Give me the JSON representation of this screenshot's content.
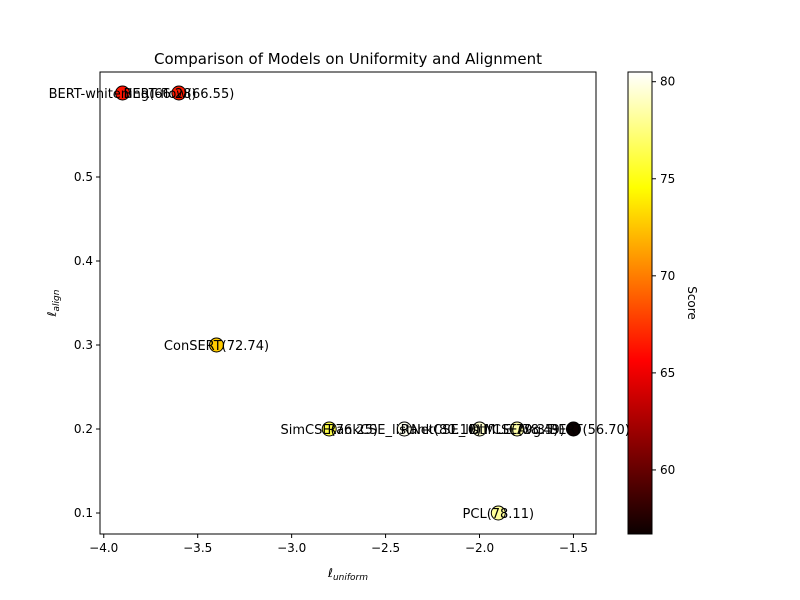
{
  "chart_data": {
    "type": "scatter",
    "title": "Comparison of Models on Uniformity and Alignment",
    "xlabel": "ℓ",
    "xlabel_sub": "uniform",
    "ylabel": "ℓ",
    "ylabel_sub": "align",
    "xlim": [
      -4.02,
      -1.38
    ],
    "ylim": [
      0.075,
      0.625
    ],
    "xticks": [
      -4.0,
      -3.5,
      -3.0,
      -2.5,
      -2.0,
      -1.5
    ],
    "xtick_labels": [
      "−4.0",
      "−3.5",
      "−3.0",
      "−2.5",
      "−2.0",
      "−1.5"
    ],
    "yticks": [
      0.1,
      0.2,
      0.3,
      0.4,
      0.5
    ],
    "ytick_labels": [
      "0.1",
      "0.2",
      "0.3",
      "0.4",
      "0.5"
    ],
    "grid": false,
    "colormap": "hot",
    "colorbar": {
      "label": "Score",
      "range": [
        56.7,
        80.5
      ],
      "ticks": [
        60,
        65,
        70,
        75,
        80
      ],
      "tick_labels": [
        "60",
        "65",
        "70",
        "75",
        "80"
      ]
    },
    "points": [
      {
        "label": "BERT-whitening(66.28)",
        "x": -3.9,
        "y": 0.6,
        "score": 66.28
      },
      {
        "label": "BERT-flow(66.55)",
        "x": -3.6,
        "y": 0.6,
        "score": 66.55
      },
      {
        "label": "ConSERT(72.74)",
        "x": -3.4,
        "y": 0.3,
        "score": 72.74
      },
      {
        "label": "SimCSE(76.25)",
        "x": -2.8,
        "y": 0.2,
        "score": 76.25
      },
      {
        "label": "RankCSE_listNet(80.10)",
        "x": -2.4,
        "y": 0.2,
        "score": 80.1
      },
      {
        "label": "RankCSE_listMLE(79.35)",
        "x": -2.0,
        "y": 0.2,
        "score": 79.35
      },
      {
        "label": "DiffCSE(78.49)",
        "x": -1.8,
        "y": 0.2,
        "score": 78.49
      },
      {
        "label": "Avg. BERT(56.70)",
        "x": -1.5,
        "y": 0.2,
        "score": 56.7
      },
      {
        "label": "PCL(78.11)",
        "x": -1.9,
        "y": 0.1,
        "score": 78.11
      }
    ]
  }
}
